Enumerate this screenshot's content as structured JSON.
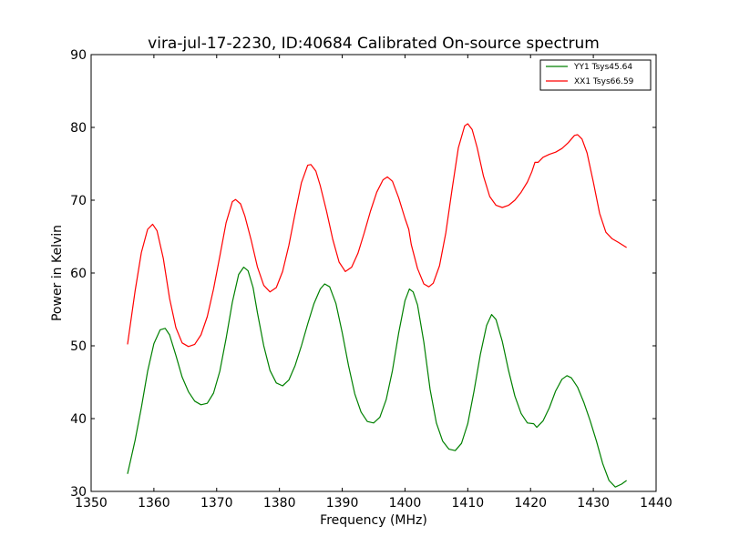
{
  "chart_data": {
    "type": "line",
    "title": "vira-jul-17-2230, ID:40684 Calibrated On-source spectrum",
    "xlabel": "Frequency (MHz)",
    "ylabel": "Power in Kelvin",
    "xlim": [
      1350,
      1440
    ],
    "ylim": [
      30,
      90
    ],
    "xticks": [
      1350,
      1360,
      1370,
      1380,
      1390,
      1400,
      1410,
      1420,
      1430,
      1440
    ],
    "yticks": [
      30,
      40,
      50,
      60,
      70,
      80,
      90
    ],
    "grid": false,
    "legend_placement": "top-right",
    "series": [
      {
        "name": "YY1 Tsys45.64",
        "color": "#008000",
        "points": [
          [
            1355.8,
            32.4
          ],
          [
            1357.0,
            37.0
          ],
          [
            1358.0,
            41.5
          ],
          [
            1359.0,
            46.5
          ],
          [
            1360.0,
            50.3
          ],
          [
            1361.0,
            52.2
          ],
          [
            1361.8,
            52.4
          ],
          [
            1362.5,
            51.5
          ],
          [
            1363.5,
            48.7
          ],
          [
            1364.5,
            45.7
          ],
          [
            1365.5,
            43.7
          ],
          [
            1366.5,
            42.4
          ],
          [
            1367.5,
            41.9
          ],
          [
            1368.5,
            42.1
          ],
          [
            1369.5,
            43.5
          ],
          [
            1370.5,
            46.5
          ],
          [
            1371.5,
            51.0
          ],
          [
            1372.5,
            56.0
          ],
          [
            1373.5,
            59.8
          ],
          [
            1374.3,
            60.8
          ],
          [
            1375.0,
            60.3
          ],
          [
            1375.8,
            58.0
          ],
          [
            1376.5,
            54.5
          ],
          [
            1377.5,
            50.0
          ],
          [
            1378.5,
            46.6
          ],
          [
            1379.5,
            44.9
          ],
          [
            1380.5,
            44.5
          ],
          [
            1381.5,
            45.3
          ],
          [
            1382.5,
            47.3
          ],
          [
            1383.5,
            50.0
          ],
          [
            1384.5,
            53.0
          ],
          [
            1385.5,
            55.8
          ],
          [
            1386.5,
            57.8
          ],
          [
            1387.2,
            58.5
          ],
          [
            1388.0,
            58.1
          ],
          [
            1389.0,
            55.8
          ],
          [
            1390.0,
            51.8
          ],
          [
            1391.0,
            47.3
          ],
          [
            1392.0,
            43.4
          ],
          [
            1393.0,
            40.9
          ],
          [
            1394.0,
            39.6
          ],
          [
            1395.0,
            39.4
          ],
          [
            1396.0,
            40.2
          ],
          [
            1397.0,
            42.6
          ],
          [
            1398.0,
            46.6
          ],
          [
            1399.0,
            51.8
          ],
          [
            1400.0,
            56.2
          ],
          [
            1400.7,
            57.8
          ],
          [
            1401.3,
            57.4
          ],
          [
            1402.0,
            55.6
          ],
          [
            1403.0,
            50.5
          ],
          [
            1404.0,
            44.0
          ],
          [
            1405.0,
            39.4
          ],
          [
            1406.0,
            36.9
          ],
          [
            1407.0,
            35.8
          ],
          [
            1408.0,
            35.6
          ],
          [
            1409.0,
            36.6
          ],
          [
            1410.0,
            39.3
          ],
          [
            1411.0,
            43.8
          ],
          [
            1412.0,
            48.8
          ],
          [
            1413.0,
            52.8
          ],
          [
            1413.8,
            54.3
          ],
          [
            1414.5,
            53.6
          ],
          [
            1415.5,
            50.6
          ],
          [
            1416.5,
            46.6
          ],
          [
            1417.5,
            43.1
          ],
          [
            1418.5,
            40.7
          ],
          [
            1419.5,
            39.4
          ],
          [
            1420.5,
            39.3
          ],
          [
            1421.0,
            38.8
          ],
          [
            1422.0,
            39.7
          ],
          [
            1423.0,
            41.5
          ],
          [
            1424.0,
            43.8
          ],
          [
            1425.0,
            45.4
          ],
          [
            1425.8,
            45.9
          ],
          [
            1426.5,
            45.6
          ],
          [
            1427.5,
            44.3
          ],
          [
            1428.5,
            42.2
          ],
          [
            1429.5,
            39.7
          ],
          [
            1430.5,
            36.9
          ],
          [
            1431.5,
            33.8
          ],
          [
            1432.5,
            31.5
          ],
          [
            1433.5,
            30.6
          ],
          [
            1434.5,
            31.0
          ],
          [
            1435.3,
            31.5
          ]
        ]
      },
      {
        "name": "XX1 Tsys66.59",
        "color": "#ff0000",
        "points": [
          [
            1355.8,
            50.2
          ],
          [
            1357.0,
            57.5
          ],
          [
            1358.0,
            62.8
          ],
          [
            1359.0,
            66.0
          ],
          [
            1359.8,
            66.7
          ],
          [
            1360.5,
            65.8
          ],
          [
            1361.5,
            62.0
          ],
          [
            1362.5,
            56.5
          ],
          [
            1363.5,
            52.5
          ],
          [
            1364.5,
            50.4
          ],
          [
            1365.5,
            49.9
          ],
          [
            1366.5,
            50.2
          ],
          [
            1367.5,
            51.5
          ],
          [
            1368.5,
            54.0
          ],
          [
            1369.5,
            57.8
          ],
          [
            1370.5,
            62.3
          ],
          [
            1371.5,
            66.9
          ],
          [
            1372.5,
            69.8
          ],
          [
            1373.0,
            70.1
          ],
          [
            1373.8,
            69.5
          ],
          [
            1374.5,
            67.8
          ],
          [
            1375.5,
            64.5
          ],
          [
            1376.5,
            60.8
          ],
          [
            1377.5,
            58.3
          ],
          [
            1378.5,
            57.4
          ],
          [
            1379.5,
            58.0
          ],
          [
            1380.5,
            60.2
          ],
          [
            1381.5,
            63.8
          ],
          [
            1382.5,
            68.2
          ],
          [
            1383.5,
            72.4
          ],
          [
            1384.5,
            74.8
          ],
          [
            1385.0,
            74.9
          ],
          [
            1385.8,
            74.0
          ],
          [
            1386.5,
            72.0
          ],
          [
            1387.5,
            68.5
          ],
          [
            1388.5,
            64.6
          ],
          [
            1389.5,
            61.5
          ],
          [
            1390.5,
            60.2
          ],
          [
            1391.5,
            60.8
          ],
          [
            1392.5,
            62.7
          ],
          [
            1393.5,
            65.5
          ],
          [
            1394.5,
            68.5
          ],
          [
            1395.5,
            71.1
          ],
          [
            1396.5,
            72.8
          ],
          [
            1397.2,
            73.2
          ],
          [
            1398.0,
            72.6
          ],
          [
            1399.0,
            70.3
          ],
          [
            1400.0,
            67.5
          ],
          [
            1400.6,
            66.0
          ],
          [
            1401.0,
            63.9
          ],
          [
            1402.0,
            60.6
          ],
          [
            1403.0,
            58.5
          ],
          [
            1403.8,
            58.1
          ],
          [
            1404.5,
            58.6
          ],
          [
            1405.5,
            61.0
          ],
          [
            1406.5,
            65.5
          ],
          [
            1407.5,
            71.5
          ],
          [
            1408.5,
            77.2
          ],
          [
            1409.5,
            80.2
          ],
          [
            1410.0,
            80.5
          ],
          [
            1410.7,
            79.7
          ],
          [
            1411.5,
            77.2
          ],
          [
            1412.5,
            73.3
          ],
          [
            1413.5,
            70.5
          ],
          [
            1414.5,
            69.3
          ],
          [
            1415.5,
            69.0
          ],
          [
            1416.5,
            69.3
          ],
          [
            1417.5,
            70.0
          ],
          [
            1418.5,
            71.1
          ],
          [
            1419.5,
            72.5
          ],
          [
            1420.2,
            73.9
          ],
          [
            1420.7,
            75.2
          ],
          [
            1421.2,
            75.2
          ],
          [
            1422.0,
            75.9
          ],
          [
            1423.0,
            76.3
          ],
          [
            1424.0,
            76.6
          ],
          [
            1425.0,
            77.1
          ],
          [
            1426.0,
            77.9
          ],
          [
            1427.0,
            78.9
          ],
          [
            1427.5,
            79.0
          ],
          [
            1428.2,
            78.4
          ],
          [
            1429.0,
            76.5
          ],
          [
            1430.0,
            72.5
          ],
          [
            1431.0,
            68.2
          ],
          [
            1432.0,
            65.6
          ],
          [
            1433.0,
            64.7
          ],
          [
            1434.0,
            64.2
          ],
          [
            1435.3,
            63.5
          ]
        ]
      }
    ]
  }
}
